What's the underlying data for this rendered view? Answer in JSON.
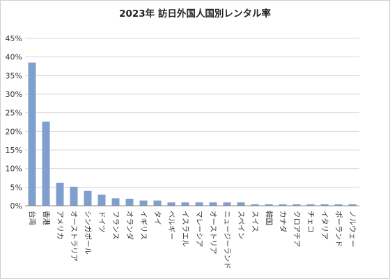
{
  "chart_data": {
    "type": "bar",
    "title": "2023年 訪日外国人国別レンタル率",
    "xlabel": "",
    "ylabel": "",
    "ylim": [
      0,
      45
    ],
    "yticks": [
      "0%",
      "5%",
      "10%",
      "15%",
      "20%",
      "25%",
      "30%",
      "35%",
      "40%",
      "45%"
    ],
    "grid": true,
    "legend": "none",
    "bar_color": "#7f9fce",
    "categories": [
      "台湾",
      "香港",
      "アメリカ",
      "オーストラリア",
      "シンガポール",
      "ドイツ",
      "フランス",
      "オランダ",
      "イギリス",
      "タイ",
      "ベルギー",
      "イスラエル",
      "マレーシア",
      "オーストリア",
      "ニュージーランド",
      "スペイン",
      "スイス",
      "韓国",
      "カナダ",
      "クロアチア",
      "チェコ",
      "イタリア",
      "ポーランド",
      "ノルウェー"
    ],
    "values": [
      38.5,
      22.6,
      6.2,
      5.1,
      4.0,
      3.0,
      2.0,
      1.9,
      1.4,
      1.4,
      0.9,
      0.9,
      0.9,
      0.9,
      0.9,
      0.9,
      0.4,
      0.4,
      0.4,
      0.4,
      0.4,
      0.4,
      0.4,
      0.4
    ]
  }
}
